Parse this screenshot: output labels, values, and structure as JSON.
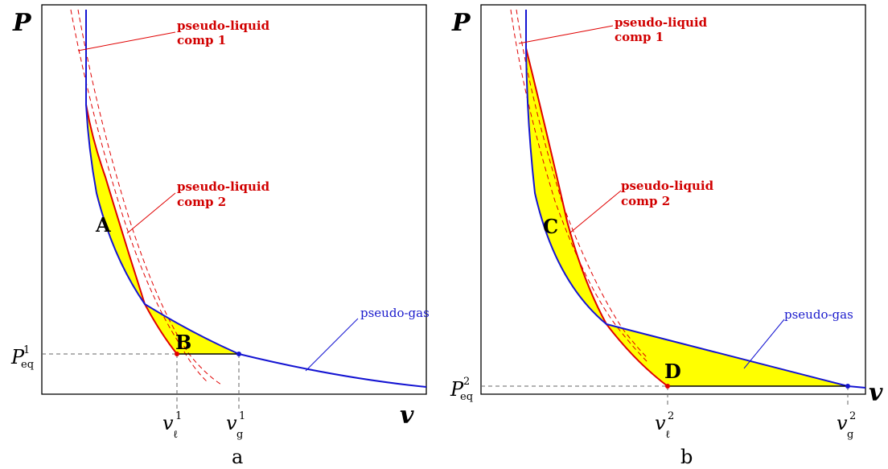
{
  "panels": [
    {
      "axis_y": "P",
      "axis_x": "v",
      "caption": "a",
      "label_liquid1": [
        "pseudo-liquid",
        "comp 1"
      ],
      "label_liquid2": [
        "pseudo-liquid",
        "comp 2"
      ],
      "label_gas": "pseudo-gas",
      "region_upper": "A",
      "region_lower": "B",
      "p_eq": {
        "base": "P",
        "sub": "eq",
        "sup": "1"
      },
      "v_l": {
        "base": "v",
        "sub": "ℓ",
        "sup": "1"
      },
      "v_g": {
        "base": "v",
        "sub": "g",
        "sup": "1"
      }
    },
    {
      "axis_y": "P",
      "axis_x": "v",
      "caption": "b",
      "label_liquid1": [
        "pseudo-liquid",
        "comp 1"
      ],
      "label_liquid2": [
        "pseudo-liquid",
        "comp 2"
      ],
      "label_gas": "pseudo-gas",
      "region_upper": "C",
      "region_lower": "D",
      "p_eq": {
        "base": "P",
        "sub": "eq",
        "sup": "2"
      },
      "v_l": {
        "base": "v",
        "sub": "ℓ",
        "sup": "2"
      },
      "v_g": {
        "base": "v",
        "sub": "g",
        "sup": "2"
      }
    }
  ],
  "colors": {
    "liquid": "#e00000",
    "gas": "#1414d2",
    "fill": "#ffff00"
  }
}
